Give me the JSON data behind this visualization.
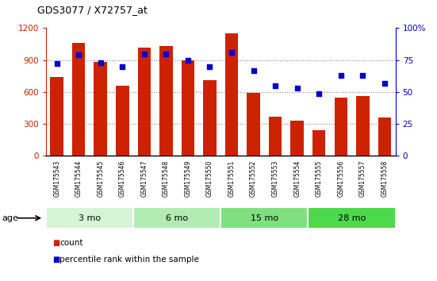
{
  "title": "GDS3077 / X72757_at",
  "samples": [
    "GSM175543",
    "GSM175544",
    "GSM175545",
    "GSM175546",
    "GSM175547",
    "GSM175548",
    "GSM175549",
    "GSM175550",
    "GSM175551",
    "GSM175552",
    "GSM175553",
    "GSM175554",
    "GSM175555",
    "GSM175556",
    "GSM175557",
    "GSM175558"
  ],
  "counts": [
    740,
    1060,
    880,
    660,
    1020,
    1030,
    900,
    710,
    1150,
    590,
    370,
    330,
    240,
    550,
    560,
    360
  ],
  "percentiles": [
    72,
    79,
    73,
    70,
    80,
    80,
    75,
    70,
    81,
    67,
    55,
    53,
    49,
    63,
    63,
    57
  ],
  "age_groups": [
    {
      "label": "3 mo",
      "start": 0,
      "end": 4,
      "color": "#d6f5d6"
    },
    {
      "label": "6 mo",
      "start": 4,
      "end": 8,
      "color": "#b3ecb3"
    },
    {
      "label": "15 mo",
      "start": 8,
      "end": 12,
      "color": "#80e080"
    },
    {
      "label": "28 mo",
      "start": 12,
      "end": 16,
      "color": "#4cd94c"
    }
  ],
  "bar_color": "#cc2200",
  "dot_color": "#0000cc",
  "ylim_left": [
    0,
    1200
  ],
  "ylim_right": [
    0,
    100
  ],
  "yticks_left": [
    0,
    300,
    600,
    900,
    1200
  ],
  "yticks_right": [
    0,
    25,
    50,
    75,
    100
  ],
  "grid_color": "#888888",
  "age_label": "age",
  "sample_bg": "#d0d0d0",
  "age_arrow_color": "#000000"
}
